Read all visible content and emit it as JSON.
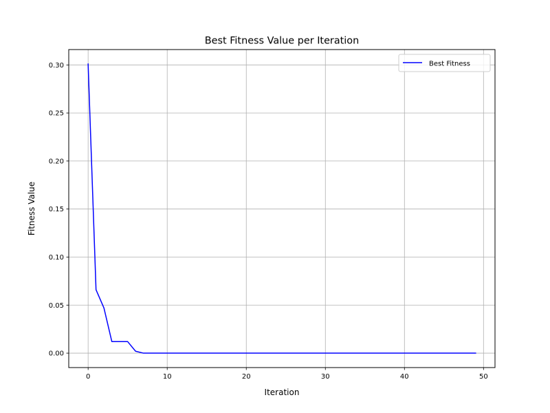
{
  "chart_data": {
    "type": "line",
    "title": "Best Fitness Value per Iteration",
    "xlabel": "Iteration",
    "ylabel": "Fitness Value",
    "xlim": [
      -2.45,
      51.45
    ],
    "ylim": [
      -0.015,
      0.316
    ],
    "xticks": [
      0,
      10,
      20,
      30,
      40,
      50
    ],
    "yticks": [
      0.0,
      0.05,
      0.1,
      0.15,
      0.2,
      0.25,
      0.3
    ],
    "xtick_labels": [
      "0",
      "10",
      "20",
      "30",
      "40",
      "50"
    ],
    "ytick_labels": [
      "0.00",
      "0.05",
      "0.10",
      "0.15",
      "0.20",
      "0.25",
      "0.30"
    ],
    "grid": true,
    "legend_position": "upper right",
    "series": [
      {
        "name": "Best Fitness",
        "color": "#0000ff",
        "x": [
          0,
          1,
          2,
          3,
          4,
          5,
          6,
          7,
          8,
          9,
          10,
          11,
          12,
          13,
          14,
          15,
          16,
          17,
          18,
          19,
          20,
          21,
          22,
          23,
          24,
          25,
          26,
          27,
          28,
          29,
          30,
          31,
          32,
          33,
          34,
          35,
          36,
          37,
          38,
          39,
          40,
          41,
          42,
          43,
          44,
          45,
          46,
          47,
          48,
          49
        ],
        "y": [
          0.301,
          0.066,
          0.047,
          0.012,
          0.012,
          0.012,
          0.002,
          0.0,
          0.0,
          0.0,
          0.0,
          0.0,
          0.0,
          0.0,
          0.0,
          0.0,
          0.0,
          0.0,
          0.0,
          0.0,
          0.0,
          0.0,
          0.0,
          0.0,
          0.0,
          0.0,
          0.0,
          0.0,
          0.0,
          0.0,
          0.0,
          0.0,
          0.0,
          0.0,
          0.0,
          0.0,
          0.0,
          0.0,
          0.0,
          0.0,
          0.0,
          0.0,
          0.0,
          0.0,
          0.0,
          0.0,
          0.0,
          0.0,
          0.0,
          0.0
        ]
      }
    ]
  }
}
